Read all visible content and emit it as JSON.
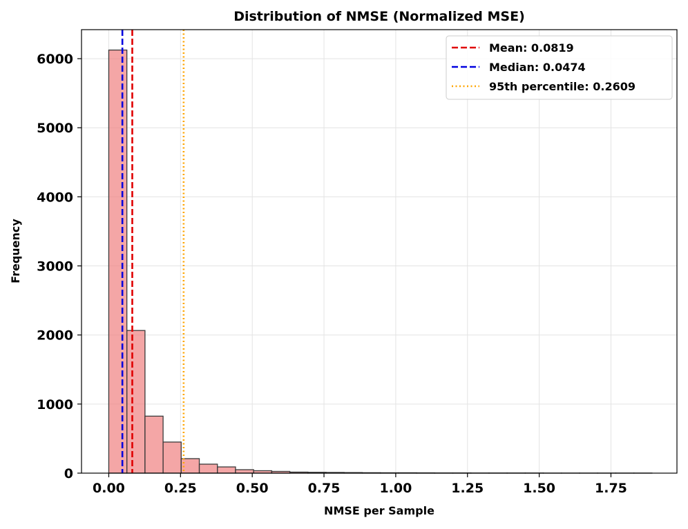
{
  "chart_data": {
    "type": "bar",
    "title": "Distribution of NMSE (Normalized MSE)",
    "xlabel": "NMSE per Sample",
    "ylabel": "Frequency",
    "xlim": [
      -0.095,
      1.98
    ],
    "ylim": [
      0,
      6420
    ],
    "xticks": [
      0.0,
      0.25,
      0.5,
      0.75,
      1.0,
      1.25,
      1.5,
      1.75
    ],
    "xtick_labels": [
      "0.00",
      "0.25",
      "0.50",
      "0.75",
      "1.00",
      "1.25",
      "1.50",
      "1.75"
    ],
    "yticks": [
      0,
      1000,
      2000,
      3000,
      4000,
      5000,
      6000
    ],
    "ytick_labels": [
      "0",
      "1000",
      "2000",
      "3000",
      "4000",
      "5000",
      "6000"
    ],
    "grid": true,
    "legend_position": "top-right",
    "bar_color": "#f08080",
    "bin_width": 0.0631,
    "bin_starts": [
      0.0,
      0.0631,
      0.1262,
      0.1893,
      0.2524,
      0.3155,
      0.3786,
      0.4417,
      0.5048,
      0.5679,
      0.631,
      0.6941,
      0.7572,
      0.8203,
      0.8834,
      0.9465,
      1.0096,
      1.0727,
      1.1358,
      1.1989,
      1.262,
      1.3251,
      1.3882,
      1.4513,
      1.5144,
      1.5775,
      1.6406,
      1.7037,
      1.7668,
      1.8299
    ],
    "values": [
      6125,
      2065,
      825,
      450,
      210,
      130,
      90,
      50,
      35,
      25,
      15,
      12,
      10,
      8,
      6,
      5,
      5,
      4,
      3,
      3,
      2,
      2,
      2,
      2,
      1,
      1,
      1,
      1,
      1,
      1
    ],
    "reference_lines": [
      {
        "label": "Mean: 0.0819",
        "x": 0.0819,
        "color": "#e00000",
        "style": "dashed"
      },
      {
        "label": "Median: 0.0474",
        "x": 0.0474,
        "color": "#0000e0",
        "style": "dashed"
      },
      {
        "label": "95th percentile: 0.2609",
        "x": 0.2609,
        "color": "#ffa500",
        "style": "dotted"
      }
    ]
  }
}
